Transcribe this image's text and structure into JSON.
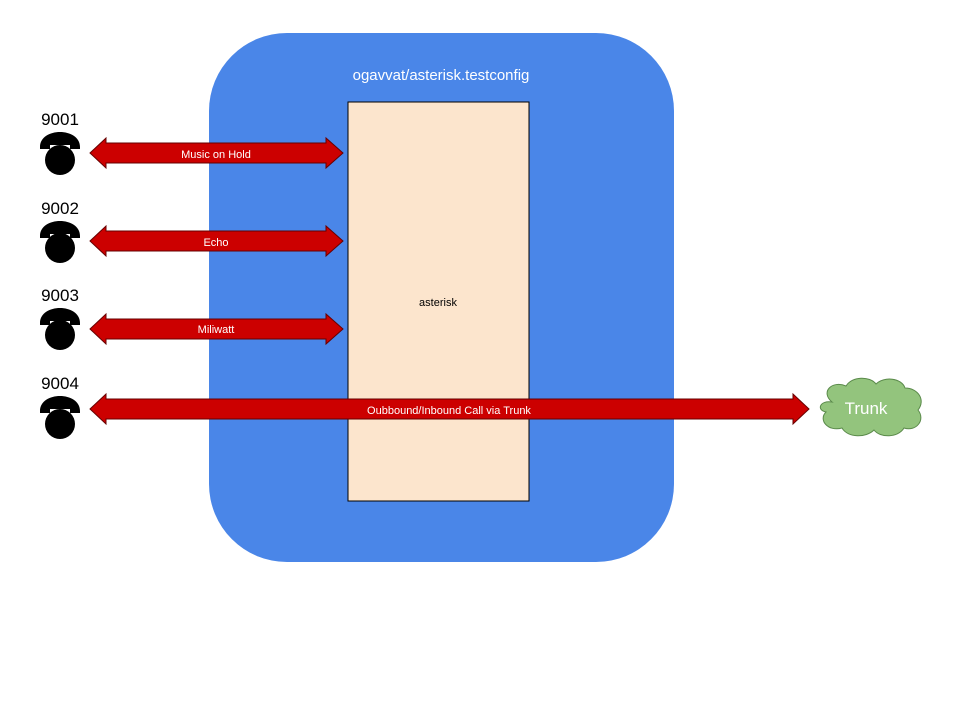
{
  "container": {
    "title": "ogavvat/asterisk.testconfig",
    "fill": "#4a86e8"
  },
  "server": {
    "label": "asterisk",
    "fill": "#fce5cd"
  },
  "arrow_color": "#cc0000",
  "phones": [
    {
      "number": "9001",
      "link_label": "Music on Hold"
    },
    {
      "number": "9002",
      "link_label": "Echo"
    },
    {
      "number": "9003",
      "link_label": "Miliwatt"
    },
    {
      "number": "9004",
      "link_label": "Oubbound/Inbound Call via Trunk"
    }
  ],
  "trunk": {
    "label": "Trunk",
    "fill": "#93c47d",
    "icon": "cloud-icon"
  },
  "phone_icon": "telephone-icon"
}
